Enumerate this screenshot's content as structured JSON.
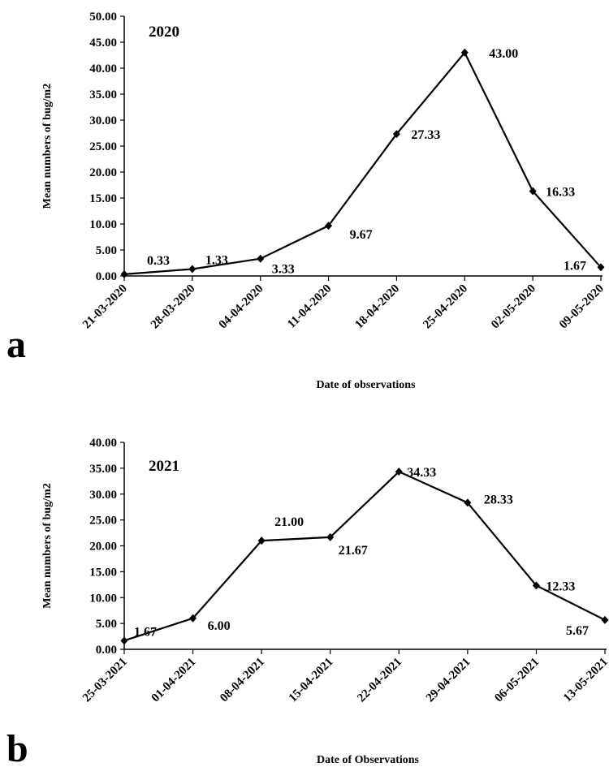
{
  "chart_data": [
    {
      "type": "line",
      "panel_label": "a",
      "annotation": "2020",
      "categories": [
        "21-03-2020",
        "28-03-2020",
        "04-04-2020",
        "11-04-2020",
        "18-04-2020",
        "25-04-2020",
        "02-05-2020",
        "09-05-2020"
      ],
      "values": [
        0.33,
        1.33,
        3.33,
        9.67,
        27.33,
        43.0,
        16.33,
        1.67
      ],
      "data_labels": [
        "0.33",
        "1.33",
        "3.33",
        "9.67",
        "27.33",
        "43.00",
        "16.33",
        "1.67"
      ],
      "yticks": [
        "0.00",
        "5.00",
        "10.00",
        "15.00",
        "20.00",
        "25.00",
        "30.00",
        "35.00",
        "40.00",
        "45.00",
        "50.00"
      ],
      "ylim": [
        0,
        50
      ],
      "xlabel": "Date of observations",
      "ylabel": "Mean numbers of bug/m2",
      "grid": false,
      "marker": "diamond"
    },
    {
      "type": "line",
      "panel_label": "b",
      "annotation": "2021",
      "categories": [
        "25-03-2021",
        "01-04-2021",
        "08-04-2021",
        "15-04-2021",
        "22-04-2021",
        "29-04-2021",
        "06-05-2021",
        "13-05-2021"
      ],
      "values": [
        1.67,
        6.0,
        21.0,
        21.67,
        34.33,
        28.33,
        12.33,
        5.67
      ],
      "data_labels": [
        "1.67",
        "6.00",
        "21.00",
        "21.67",
        "34.33",
        "28.33",
        "12.33",
        "5.67"
      ],
      "yticks": [
        "0.00",
        "5.00",
        "10.00",
        "15.00",
        "20.00",
        "25.00",
        "30.00",
        "35.00",
        "40.00"
      ],
      "ylim": [
        0,
        40
      ],
      "xlabel": "Date of Observations",
      "ylabel": "Mean numbers of bug/m2",
      "grid": false,
      "marker": "diamond"
    }
  ]
}
